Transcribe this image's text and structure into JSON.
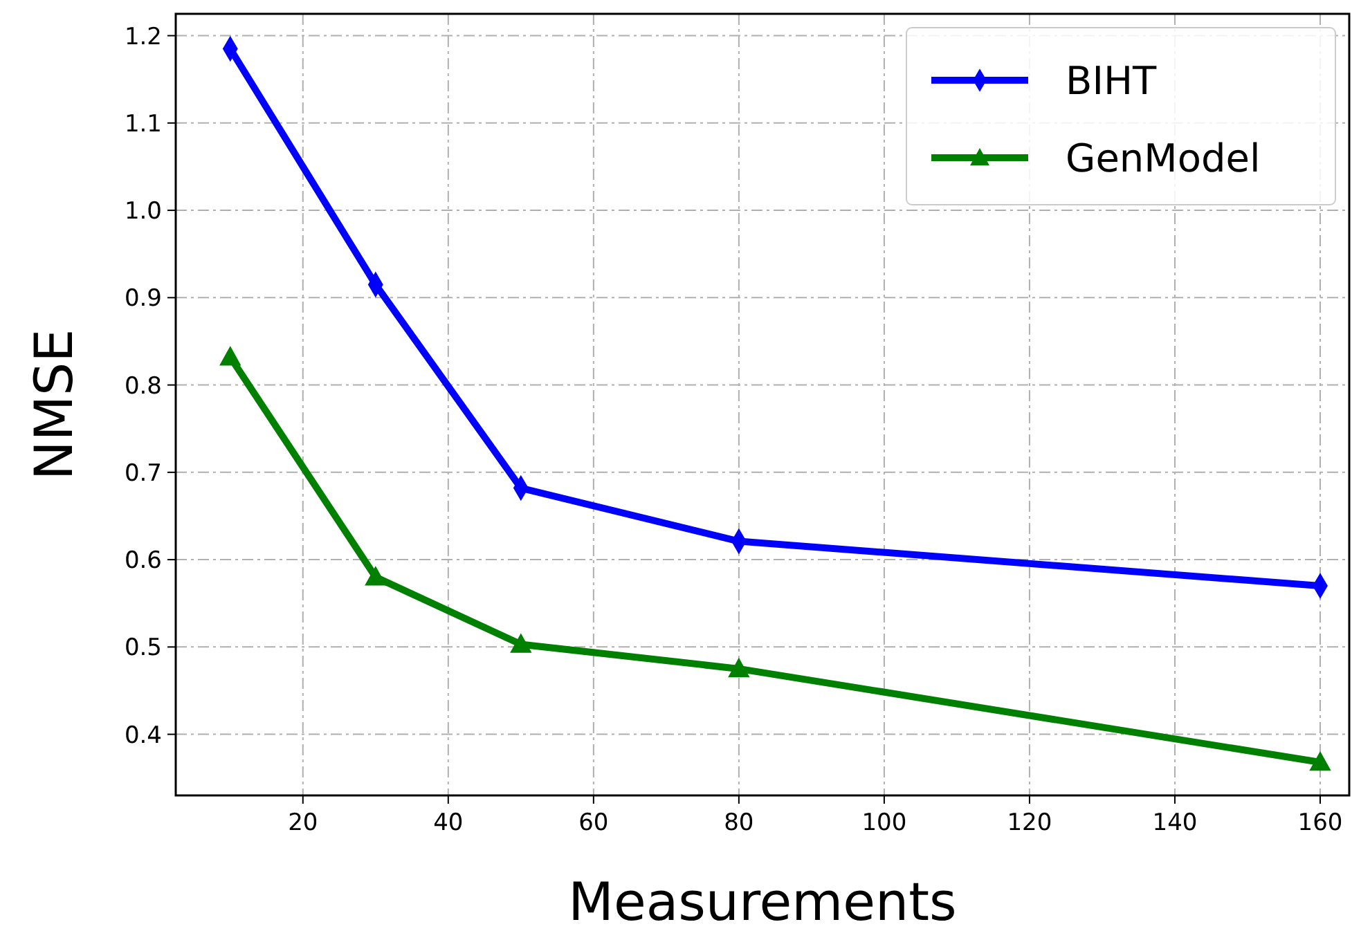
{
  "chart_data": {
    "type": "line",
    "xlabel": "Measurements",
    "ylabel": "NMSE",
    "x": [
      10,
      30,
      50,
      80,
      160
    ],
    "series": [
      {
        "name": "BIHT",
        "color": "#0000ff",
        "marker": "diamond",
        "values": [
          1.185,
          0.915,
          0.682,
          0.621,
          0.57
        ]
      },
      {
        "name": "GenModel",
        "color": "#008000",
        "marker": "triangle",
        "values": [
          0.832,
          0.58,
          0.503,
          0.475,
          0.368
        ]
      }
    ],
    "xlim": [
      2.5,
      164
    ],
    "xticks": [
      20,
      40,
      60,
      80,
      100,
      120,
      140,
      160
    ],
    "ylim": [
      0.33,
      1.225
    ],
    "yticks": [
      0.4,
      0.5,
      0.6,
      0.7,
      0.8,
      0.9,
      {
        "value": 1.0,
        "label": "1.0"
      },
      1.1,
      1.2
    ],
    "grid": true,
    "legend": "top right",
    "line_style": "solid"
  }
}
